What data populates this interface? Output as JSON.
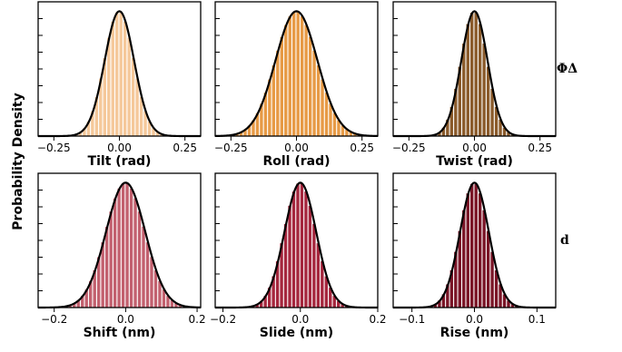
{
  "figure": {
    "ylabel": "Probability Density",
    "row_labels": [
      "ΦΔ",
      "d"
    ]
  },
  "chart_data": [
    {
      "type": "bar",
      "name": "tilt",
      "xlabel": "Tilt (rad)",
      "xlim": [
        -0.31,
        0.31
      ],
      "xticks": [
        -0.25,
        0.0,
        0.25
      ],
      "xtick_labels": [
        "−0.25",
        "0.00",
        "0.25"
      ],
      "mean": 0.0,
      "sd": 0.056,
      "bin_width": 0.0155,
      "bar_color": "#f5c89a",
      "curve_color": "#000000"
    },
    {
      "type": "bar",
      "name": "roll",
      "xlabel": "Roll (rad)",
      "xlim": [
        -0.31,
        0.31
      ],
      "xticks": [
        -0.25,
        0.0,
        0.25
      ],
      "xtick_labels": [
        "−0.25",
        "0.00",
        "0.25"
      ],
      "mean": 0.0,
      "sd": 0.08,
      "bin_width": 0.0155,
      "bar_color": "#e79a45",
      "curve_color": "#000000"
    },
    {
      "type": "bar",
      "name": "twist",
      "xlabel": "Twist (rad)",
      "xlim": [
        -0.31,
        0.31
      ],
      "xticks": [
        -0.25,
        0.0,
        0.25
      ],
      "xtick_labels": [
        "−0.25",
        "0.00",
        "0.25"
      ],
      "mean": 0.0,
      "sd": 0.05,
      "bin_width": 0.0155,
      "bar_color": "#8a5a2a",
      "curve_color": "#000000"
    },
    {
      "type": "bar",
      "name": "shift",
      "xlabel": "Shift (nm)",
      "xlim": [
        -0.245,
        0.21
      ],
      "xticks": [
        -0.2,
        0.0,
        0.2
      ],
      "xtick_labels": [
        "−0.2",
        "0.0",
        "0.2"
      ],
      "mean": 0.0,
      "sd": 0.055,
      "bin_width": 0.0114,
      "bar_color": "#c2606e",
      "curve_color": "#000000"
    },
    {
      "type": "bar",
      "name": "slide",
      "xlabel": "Slide (nm)",
      "xlim": [
        -0.22,
        0.2
      ],
      "xticks": [
        -0.2,
        0.0,
        0.2
      ],
      "xtick_labels": [
        "−0.2",
        "0.0",
        "0.2"
      ],
      "mean": 0.0,
      "sd": 0.041,
      "bin_width": 0.0105,
      "bar_color": "#a5263d",
      "curve_color": "#000000"
    },
    {
      "type": "bar",
      "name": "rise",
      "xlabel": "Rise (nm)",
      "xlim": [
        -0.13,
        0.13
      ],
      "xticks": [
        -0.1,
        0.0,
        0.1
      ],
      "xtick_labels": [
        "−0.1",
        "0.0",
        "0.1"
      ],
      "mean": 0.0,
      "sd": 0.023,
      "bin_width": 0.0065,
      "bar_color": "#7a1426",
      "curve_color": "#000000"
    }
  ]
}
